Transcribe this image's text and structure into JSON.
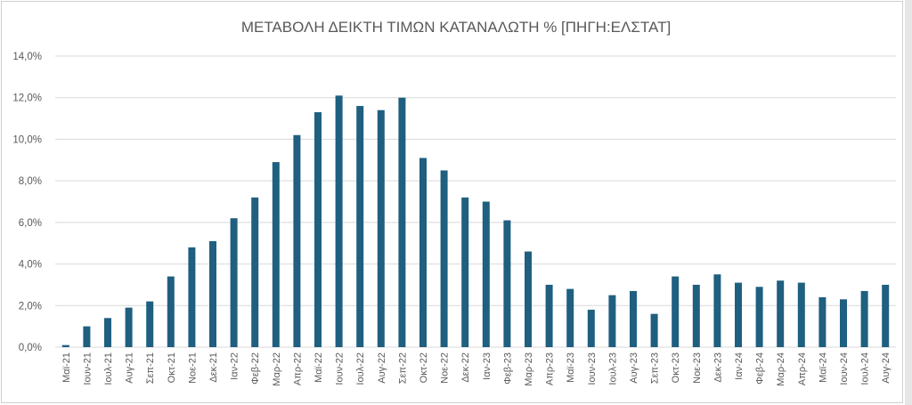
{
  "chart_data": {
    "type": "bar",
    "title": "ΜΕΤΑΒΟΛΗ ΔΕΙΚΤΗ ΤΙΜΩΝ ΚΑΤΑΝΑΛΩΤΗ % [ΠΗΓΗ:ΕΛΣΤΑΤ]",
    "ylim": [
      0,
      14
    ],
    "y_ticks": [
      0,
      2,
      4,
      6,
      8,
      10,
      12,
      14
    ],
    "y_tick_labels": [
      "0,0%",
      "2,0%",
      "4,0%",
      "6,0%",
      "8,0%",
      "10,0%",
      "12,0%",
      "14,0%"
    ],
    "categories": [
      "Μαϊ-21",
      "Ιουν-21",
      "Ιουλ-21",
      "Αυγ-21",
      "Σεπ-21",
      "Οκτ-21",
      "Νοε-21",
      "Δεκ-21",
      "Ιαν-22",
      "Φεβ-22",
      "Μαρ-22",
      "Απρ-22",
      "Μαϊ-22",
      "Ιουν-22",
      "Ιουλ-22",
      "Αυγ-22",
      "Σεπ-22",
      "Οκτ-22",
      "Νοε-22",
      "Δεκ-22",
      "Ιαν-23",
      "Φεβ-23",
      "Μαρ-23",
      "Απρ-23",
      "Μαϊ-23",
      "Ιουν-23",
      "Ιουλ-23",
      "Αυγ-23",
      "Σεπ-23",
      "Οκτ-23",
      "Νοε-23",
      "Δεκ-23",
      "Ιαν-24",
      "Φεβ-24",
      "Μαρ-24",
      "Απρ-24",
      "Μαϊ-24",
      "Ιουν-24",
      "Ιουλ-24",
      "Αυγ-24"
    ],
    "values": [
      0.1,
      1.0,
      1.4,
      1.9,
      2.2,
      3.4,
      4.8,
      5.1,
      6.2,
      7.2,
      8.9,
      10.2,
      11.3,
      12.1,
      11.6,
      11.4,
      12.0,
      9.1,
      8.5,
      7.2,
      7.0,
      6.1,
      4.6,
      3.0,
      2.8,
      1.8,
      2.5,
      2.7,
      1.6,
      3.4,
      3.0,
      3.5,
      3.1,
      2.9,
      3.2,
      3.1,
      2.4,
      2.3,
      2.7,
      3.0
    ],
    "grid": true,
    "legend": "none",
    "colors": {
      "bar": "#1f5f7f",
      "grid": "#d9d9d9",
      "text": "#595959",
      "frame": "#d0d0d0"
    }
  }
}
